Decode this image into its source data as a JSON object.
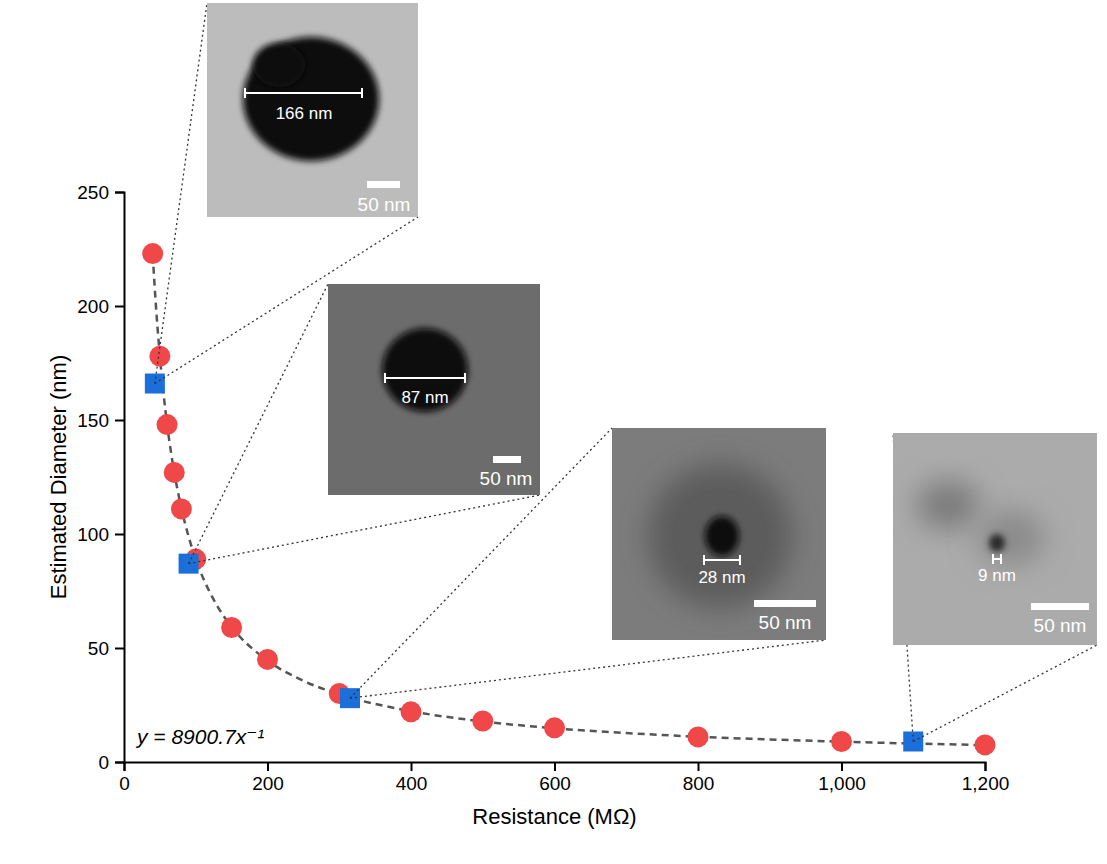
{
  "chart_data": {
    "type": "scatter",
    "x_label": "Resistance (MΩ)",
    "y_label": "Estimated Diameter (nm)",
    "annotation": "y = 8900.7x⁻¹",
    "xlim": [
      0,
      1200
    ],
    "ylim": [
      0,
      250
    ],
    "xticks": [
      0,
      200,
      400,
      600,
      800,
      {
        "value": 1000,
        "label": "1,000"
      },
      {
        "value": 1200,
        "label": "1,200"
      }
    ],
    "yticks": [
      0,
      50,
      100,
      150,
      200,
      250
    ],
    "series": [
      {
        "type": "scatter",
        "marker": "circle",
        "color": "#f04848",
        "x": [
          40,
          50,
          60,
          70,
          80,
          100,
          150,
          200,
          300,
          400,
          500,
          600,
          800,
          1000,
          1200
        ],
        "values": [
          223,
          178,
          148,
          127,
          111,
          89,
          59,
          45,
          30,
          22,
          18,
          15,
          11,
          9,
          7.5
        ]
      },
      {
        "type": "scatter",
        "marker": "square",
        "color": "#1a6fdb",
        "x": [
          43,
          90,
          315,
          1100
        ],
        "values": [
          166,
          87,
          28,
          9
        ]
      },
      {
        "type": "line",
        "line_style": "dashed",
        "color": "#555555",
        "x": [
          40,
          45,
          50,
          60,
          70,
          80,
          90,
          100,
          125,
          150,
          200,
          250,
          300,
          400,
          500,
          600,
          700,
          800,
          900,
          1000,
          1100,
          1200
        ],
        "values": [
          222.5,
          197.8,
          178,
          148.3,
          127.2,
          111.3,
          98.9,
          89,
          71.2,
          59.3,
          44.5,
          35.6,
          29.7,
          22.3,
          17.8,
          14.8,
          12.7,
          11.1,
          9.9,
          8.9,
          8.1,
          7.4
        ]
      }
    ],
    "insets": [
      {
        "measurement": "166 nm",
        "scale_bar": "50 nm"
      },
      {
        "measurement": "87 nm",
        "scale_bar": "50 nm"
      },
      {
        "measurement": "28 nm",
        "scale_bar": "50 nm"
      },
      {
        "measurement": "9 nm",
        "scale_bar": "50 nm"
      }
    ]
  }
}
